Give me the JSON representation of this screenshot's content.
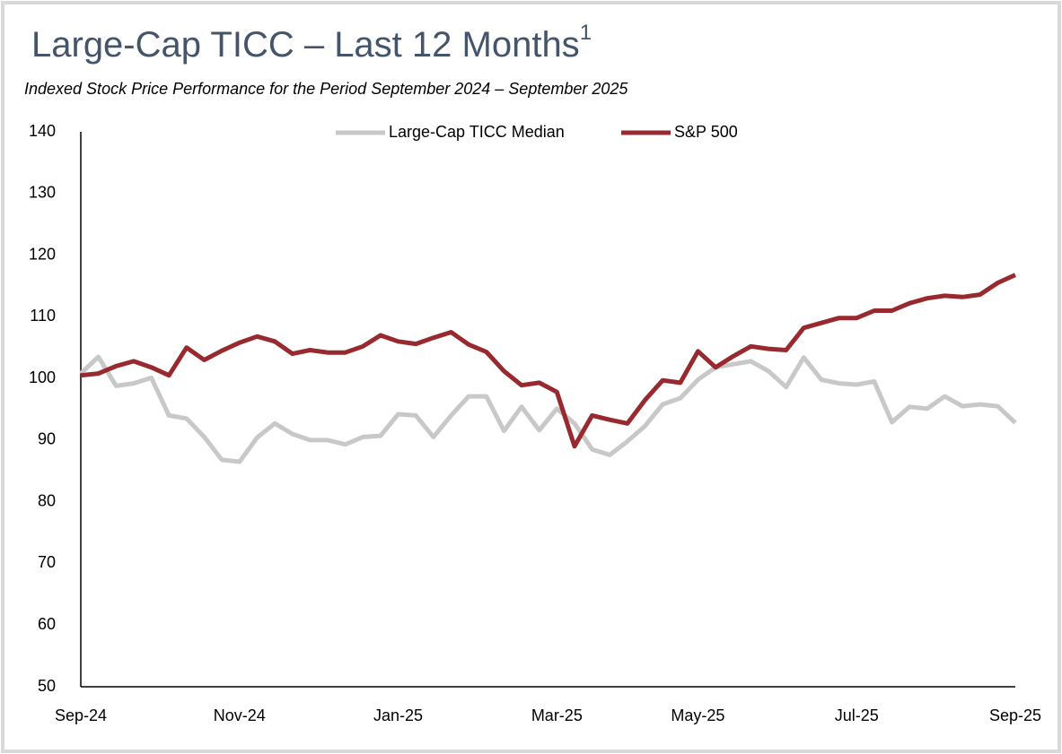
{
  "chart_data": {
    "type": "line",
    "title": "Large-Cap TICC – Last 12 Months",
    "title_superscript": "1",
    "subtitle": "Indexed Stock Price Performance for the Period September 2024 – September 2025",
    "categories": [
      "Sep-24",
      null,
      null,
      null,
      null,
      null,
      null,
      null,
      null,
      "Nov-24",
      null,
      null,
      null,
      null,
      null,
      null,
      null,
      null,
      "Jan-25",
      null,
      null,
      null,
      null,
      null,
      null,
      null,
      null,
      "Mar-25",
      null,
      null,
      null,
      null,
      null,
      null,
      null,
      "May-25",
      null,
      null,
      null,
      null,
      null,
      null,
      null,
      null,
      "Jul-25",
      null,
      null,
      null,
      null,
      null,
      null,
      null,
      null,
      "Sep-25"
    ],
    "series": [
      {
        "name": "Large-Cap TICC Median",
        "color": "#c8c8c8",
        "values": [
          100.8,
          103.5,
          98.8,
          99.2,
          100.1,
          94,
          93.5,
          90.5,
          86.8,
          86.5,
          90.4,
          92.7,
          91,
          90,
          90,
          89.3,
          90.5,
          90.7,
          94.2,
          94,
          90.5,
          94,
          97.1,
          97.1,
          91.5,
          95.4,
          91.6,
          95.1,
          92.7,
          88.5,
          87.6,
          89.8,
          92.3,
          95.8,
          96.8,
          99.8,
          101.8,
          102.3,
          102.8,
          101.2,
          98.6,
          103.4,
          99.8,
          99.2,
          99,
          99.5,
          92.9,
          95.4,
          95.1,
          97.1,
          95.5,
          95.8,
          95.5,
          92.8
        ]
      },
      {
        "name": "S&P 500",
        "color": "#982a2f",
        "values": [
          100.5,
          100.8,
          102,
          102.8,
          101.8,
          100.5,
          105,
          103,
          104.5,
          105.8,
          106.8,
          106,
          104,
          104.6,
          104.2,
          104.2,
          105.2,
          107,
          106,
          105.6,
          106.6,
          107.5,
          105.5,
          104.3,
          101.2,
          98.9,
          99.3,
          97.8,
          89,
          94,
          93.3,
          92.7,
          96.5,
          99.7,
          99.3,
          104.4,
          101.8,
          103.6,
          105.2,
          104.8,
          104.6,
          108.2,
          109,
          109.8,
          109.8,
          111,
          111,
          112.2,
          113,
          113.4,
          113.2,
          113.6,
          115.5,
          116.8
        ]
      }
    ],
    "ylim": [
      50,
      140
    ],
    "yticks": [
      50,
      60,
      70,
      80,
      90,
      100,
      110,
      120,
      130,
      140
    ],
    "grid": false,
    "legend": "top"
  }
}
